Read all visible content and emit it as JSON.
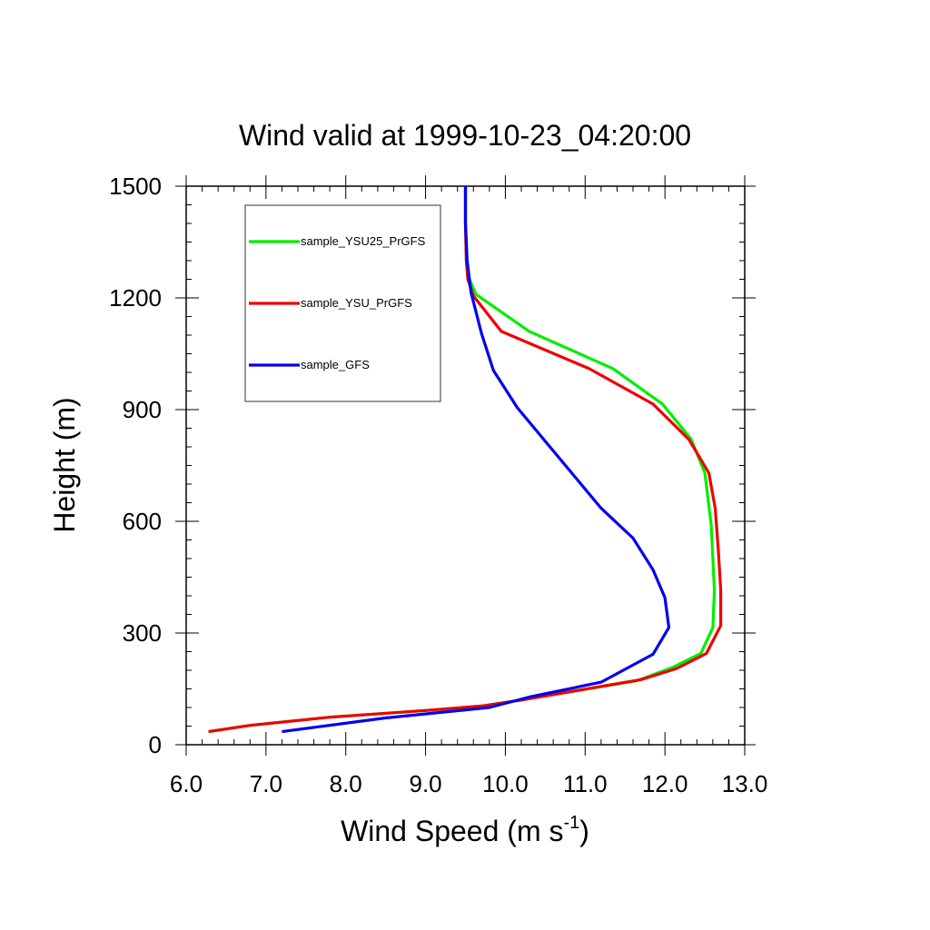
{
  "chart_data": {
    "type": "line",
    "title": "Wind valid at 1999-10-23_04:20:00",
    "xlabel": "Wind Speed (m s",
    "xlabel_sup": "-1",
    "xlabel_end": ")",
    "ylabel": "Height (m)",
    "xlim": [
      6.0,
      13.0
    ],
    "ylim": [
      0,
      1500
    ],
    "xticks": [
      6.0,
      7.0,
      8.0,
      9.0,
      10.0,
      11.0,
      12.0,
      13.0
    ],
    "xtick_labels": [
      "6.0",
      "7.0",
      "8.0",
      "9.0",
      "10.0",
      "11.0",
      "12.0",
      "13.0"
    ],
    "yticks": [
      0,
      300,
      600,
      900,
      1200,
      1500
    ],
    "ytick_labels": [
      "0",
      "300",
      "600",
      "900",
      "1200",
      "1500"
    ],
    "grid": false,
    "legend_position": "top-left",
    "series": [
      {
        "name": "sample_YSU25_PrGFS",
        "color": "#00ee00",
        "points": [
          [
            6.28,
            35
          ],
          [
            6.8,
            52
          ],
          [
            7.8,
            74
          ],
          [
            9.0,
            92
          ],
          [
            9.7,
            104
          ],
          [
            10.2,
            120
          ],
          [
            11.65,
            172
          ],
          [
            12.1,
            208
          ],
          [
            12.45,
            245
          ],
          [
            12.6,
            315
          ],
          [
            12.62,
            415
          ],
          [
            12.58,
            590
          ],
          [
            12.5,
            730
          ],
          [
            12.33,
            820
          ],
          [
            11.97,
            915
          ],
          [
            11.35,
            1010
          ],
          [
            10.3,
            1110
          ],
          [
            9.63,
            1210
          ],
          [
            9.55,
            1250
          ],
          [
            9.52,
            1300
          ],
          [
            9.5,
            1400
          ],
          [
            9.5,
            1500
          ]
        ]
      },
      {
        "name": "sample_YSU_PrGFS",
        "color": "#ee0000",
        "points": [
          [
            6.28,
            35
          ],
          [
            6.8,
            52
          ],
          [
            7.8,
            74
          ],
          [
            9.0,
            92
          ],
          [
            9.7,
            104
          ],
          [
            10.2,
            120
          ],
          [
            11.7,
            175
          ],
          [
            12.15,
            205
          ],
          [
            12.52,
            245
          ],
          [
            12.7,
            320
          ],
          [
            12.7,
            415
          ],
          [
            12.67,
            520
          ],
          [
            12.63,
            635
          ],
          [
            12.55,
            730
          ],
          [
            12.3,
            820
          ],
          [
            11.85,
            915
          ],
          [
            11.05,
            1010
          ],
          [
            9.95,
            1110
          ],
          [
            9.6,
            1205
          ],
          [
            9.53,
            1250
          ],
          [
            9.51,
            1300
          ],
          [
            9.5,
            1400
          ],
          [
            9.5,
            1500
          ]
        ]
      },
      {
        "name": "sample_GFS",
        "color": "#0000ee",
        "points": [
          [
            7.2,
            35
          ],
          [
            8.5,
            72
          ],
          [
            9.8,
            100
          ],
          [
            10.3,
            128
          ],
          [
            11.2,
            168
          ],
          [
            11.85,
            243
          ],
          [
            12.05,
            315
          ],
          [
            12.0,
            395
          ],
          [
            11.85,
            470
          ],
          [
            11.6,
            555
          ],
          [
            11.2,
            635
          ],
          [
            10.5,
            815
          ],
          [
            10.15,
            905
          ],
          [
            9.85,
            1005
          ],
          [
            9.7,
            1105
          ],
          [
            9.57,
            1215
          ],
          [
            9.52,
            1300
          ],
          [
            9.5,
            1400
          ],
          [
            9.5,
            1500
          ]
        ]
      }
    ]
  }
}
